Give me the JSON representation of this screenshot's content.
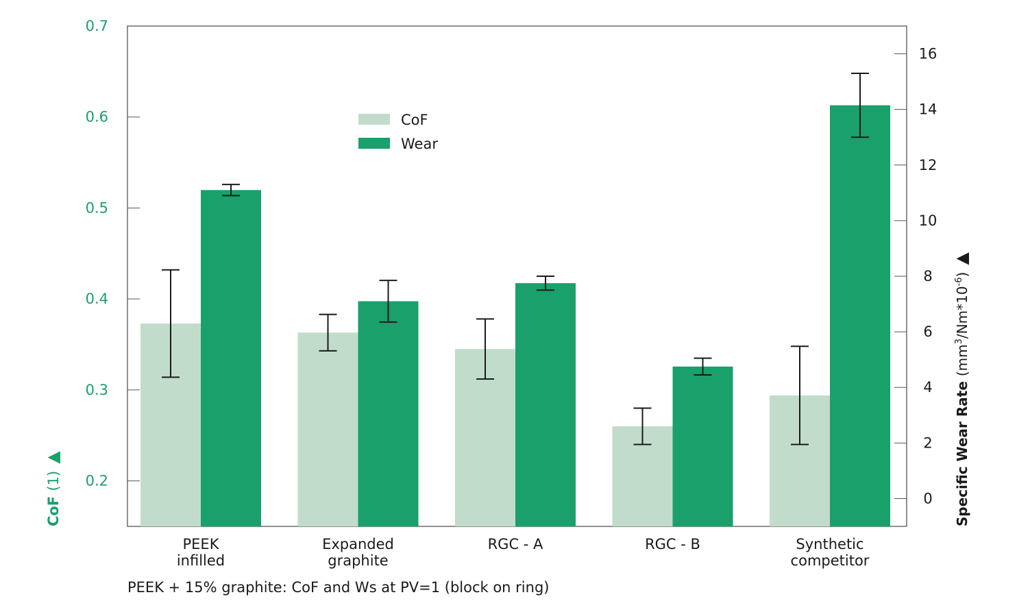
{
  "chart_data": {
    "type": "bar",
    "categories": [
      [
        "PEEK",
        "infilled"
      ],
      [
        "Expanded",
        "graphite"
      ],
      [
        "RGC - A"
      ],
      [
        "RGC - B"
      ],
      [
        "Synthetic",
        "competitor"
      ]
    ],
    "series": [
      {
        "name": "CoF",
        "axis": "left",
        "values": [
          0.373,
          0.363,
          0.345,
          0.26,
          0.294
        ],
        "error": [
          0.059,
          0.02,
          0.033,
          0.02,
          0.054
        ]
      },
      {
        "name": "Wear",
        "axis": "right",
        "values": [
          11.1,
          7.1,
          7.75,
          4.75,
          14.15
        ],
        "error": [
          0.2,
          0.75,
          0.25,
          0.3,
          1.15
        ]
      }
    ],
    "y_left": {
      "label_main": "CoF",
      "label_unit": "(1)",
      "arrow": "▲",
      "min": 0.15,
      "max": 0.7,
      "ticks": [
        "0.2",
        "0.3",
        "0.4",
        "0.5",
        "0.6",
        "0.7"
      ],
      "tick_values": [
        0.2,
        0.3,
        0.4,
        0.5,
        0.6,
        0.7
      ]
    },
    "y_right": {
      "label_main": "Specific Wear Rate",
      "label_unit_pre": "(mm",
      "label_sup1": "3",
      "label_unit_mid": "/Nm*10",
      "label_sup2": "-6",
      "label_unit_post": ")",
      "arrow": "▲",
      "min": -1,
      "max": 17,
      "ticks": [
        "0",
        "2",
        "4",
        "6",
        "8",
        "10",
        "12",
        "14",
        "16"
      ],
      "tick_values": [
        0,
        2,
        4,
        6,
        8,
        10,
        12,
        14,
        16
      ]
    },
    "legend": {
      "placement": "top-center",
      "items": [
        {
          "label": "CoF",
          "color": "#c2dccb"
        },
        {
          "label": "Wear",
          "color": "#19a06b"
        }
      ]
    },
    "caption": "PEEK + 15% graphite: CoF and Ws at PV=1 (block on ring)",
    "colors": {
      "cof": "#c2dccb",
      "wear": "#19a06b",
      "left_axis": "#19a06b",
      "frame": "#555555",
      "text": "#1a1a1a",
      "error_bar": "#1a1a1a"
    }
  }
}
